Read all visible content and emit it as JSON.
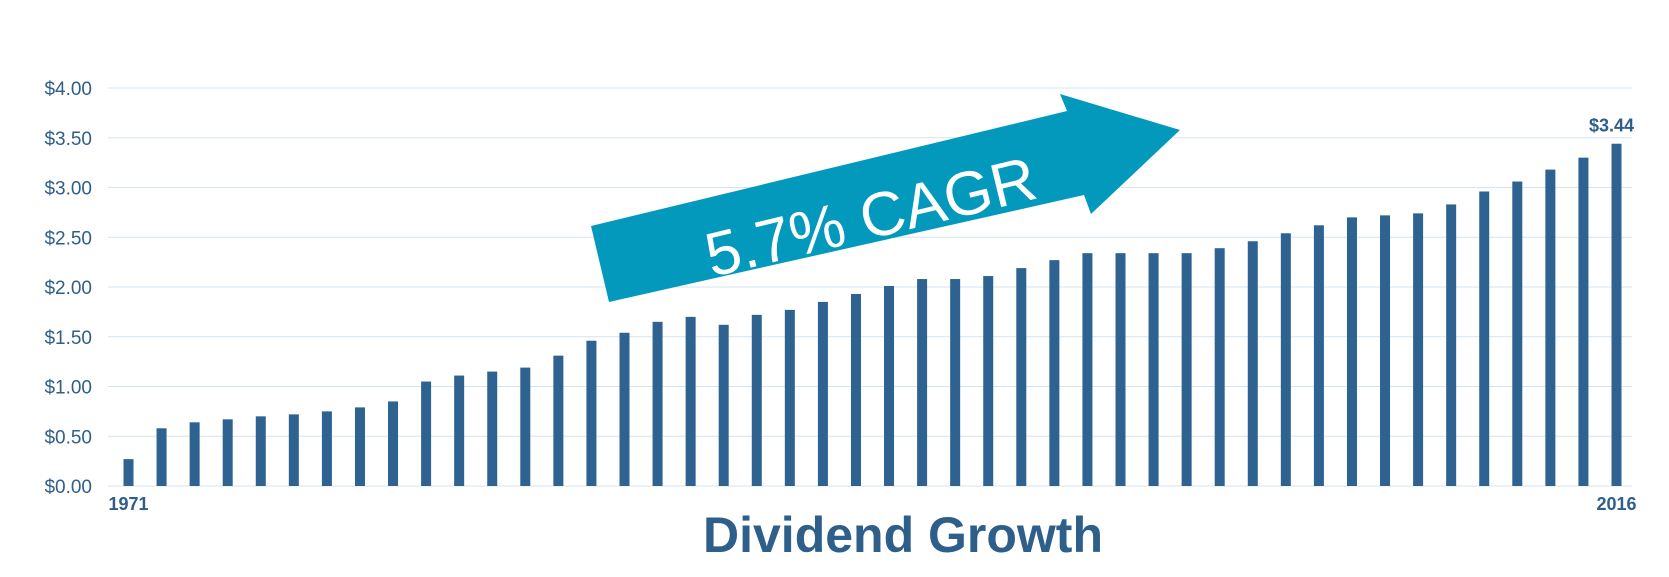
{
  "chart_data": {
    "type": "bar",
    "title": "Dividend Growth",
    "xlabel": "",
    "ylabel": "",
    "ylim": [
      0,
      4
    ],
    "yticks": [
      "$0.00",
      "$0.50",
      "$1.00",
      "$1.50",
      "$2.00",
      "$2.50",
      "$3.00",
      "$3.50",
      "$4.00"
    ],
    "x_tick_labels": [
      {
        "category": "1971",
        "text": "1971"
      },
      {
        "category": "2016",
        "text": "2016"
      }
    ],
    "categories": [
      "1971",
      "1972",
      "1973",
      "1974",
      "1975",
      "1976",
      "1977",
      "1978",
      "1979",
      "1980",
      "1981",
      "1982",
      "1983",
      "1984",
      "1985",
      "1986",
      "1987",
      "1988",
      "1989",
      "1990",
      "1991",
      "1992",
      "1993",
      "1994",
      "1995",
      "1996",
      "1997",
      "1998",
      "1999",
      "2000",
      "2001",
      "2002",
      "2003",
      "2004",
      "2005",
      "2006",
      "2007",
      "2008",
      "2009",
      "2010",
      "2011",
      "2012",
      "2013",
      "2014",
      "2015",
      "2016"
    ],
    "values": [
      0.27,
      0.58,
      0.64,
      0.67,
      0.7,
      0.72,
      0.75,
      0.79,
      0.85,
      1.05,
      1.11,
      1.15,
      1.19,
      1.31,
      1.46,
      1.54,
      1.65,
      1.7,
      1.62,
      1.72,
      1.77,
      1.85,
      1.93,
      2.01,
      2.08,
      2.08,
      2.11,
      2.19,
      2.27,
      2.34,
      2.34,
      2.34,
      2.34,
      2.39,
      2.46,
      2.54,
      2.62,
      2.7,
      2.72,
      2.74,
      2.83,
      2.96,
      3.06,
      3.18,
      3.3,
      3.44
    ],
    "bar_color": "#2e6291",
    "grid": true,
    "data_labels": [
      {
        "category": "2016",
        "text": "$3.44"
      }
    ],
    "annotation": {
      "text": "5.7% CAGR",
      "color": "#0399bd"
    }
  }
}
